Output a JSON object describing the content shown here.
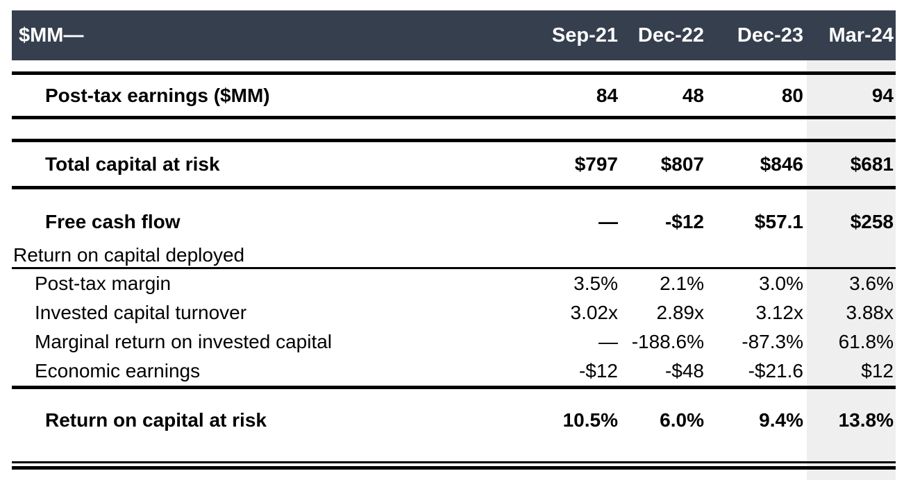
{
  "table": {
    "unit_label": "$MM—",
    "columns": [
      "Sep-21",
      "Dec-22",
      "Dec-23",
      "Mar-24"
    ],
    "highlight_column": "Mar-24",
    "colors": {
      "header_bg": "#363f4d",
      "header_text": "#ffffff",
      "highlight_bg": "#efefef",
      "rule": "#000000",
      "body_text": "#000000"
    },
    "rows": [
      {
        "label": "Post-tax earnings ($MM)",
        "values": [
          "84",
          "48",
          "80",
          "94"
        ]
      },
      {
        "label": "Total capital at risk",
        "values": [
          "$797",
          "$807",
          "$846",
          "$681"
        ]
      },
      {
        "label": "Free cash flow",
        "values": [
          "—",
          "-$12",
          "$57.1",
          "$258"
        ]
      },
      {
        "label": "Return on capital deployed",
        "values": []
      },
      {
        "label": "Post-tax margin",
        "values": [
          "3.5%",
          "2.1%",
          "3.0%",
          "3.6%"
        ]
      },
      {
        "label": "Invested capital turnover",
        "values": [
          "3.02x",
          "2.89x",
          "3.12x",
          "3.88x"
        ]
      },
      {
        "label": "Marginal return on invested capital",
        "values": [
          "—",
          "-188.6%",
          "-87.3%",
          "61.8%"
        ]
      },
      {
        "label": "Economic earnings",
        "values": [
          "-$12",
          "-$48",
          "-$21.6",
          "$12"
        ]
      },
      {
        "label": "Return on capital at risk",
        "values": [
          "10.5%",
          "6.0%",
          "9.4%",
          "13.8%"
        ]
      }
    ]
  }
}
